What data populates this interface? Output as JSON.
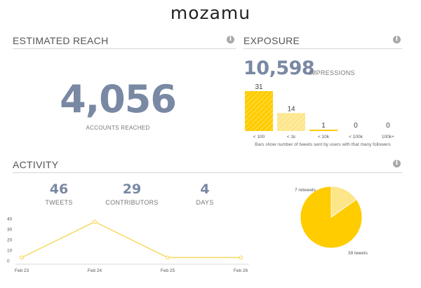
{
  "brand": "mozamu",
  "reach": {
    "title": "ESTIMATED REACH",
    "info_icon": "info-icon",
    "value": "4,056",
    "caption": "ACCOUNTS REACHED"
  },
  "exposure": {
    "title": "EXPOSURE",
    "info_icon": "info-icon",
    "impressions_value": "10,598",
    "impressions_label": "IMPRESSIONS",
    "note": "Bars show number of tweets sent by users with that many followers"
  },
  "activity": {
    "title": "ACTIVITY",
    "info_icon": "info-icon",
    "stats": [
      {
        "value": "46",
        "label": "TWEETS"
      },
      {
        "value": "29",
        "label": "CONTRIBUTORS"
      },
      {
        "value": "4",
        "label": "DAYS"
      }
    ]
  },
  "colors": {
    "accent": "#ffcc00",
    "accent_light": "#fde58a",
    "number": "#7988a3",
    "line": "#f7d75a"
  },
  "chart_data": [
    {
      "type": "bar",
      "categories": [
        "< 100",
        "< 1k",
        "< 10k",
        "< 100k",
        "100k+"
      ],
      "values": [
        31,
        14,
        1,
        0,
        0
      ],
      "value_labels": [
        "31",
        "14",
        "1",
        "0",
        "0"
      ],
      "ylim": [
        0,
        31
      ]
    },
    {
      "type": "line",
      "x": [
        "Feb 23",
        "Feb 24",
        "Feb 25",
        "Feb 26"
      ],
      "values": [
        3,
        37,
        3,
        3
      ],
      "yticks": [
        "0",
        "10",
        "20",
        "30",
        "40"
      ],
      "ylim": [
        0,
        40
      ],
      "grid": false
    },
    {
      "type": "pie",
      "labels": [
        "7 retweets",
        "39 tweets"
      ],
      "values": [
        7,
        39
      ]
    }
  ]
}
